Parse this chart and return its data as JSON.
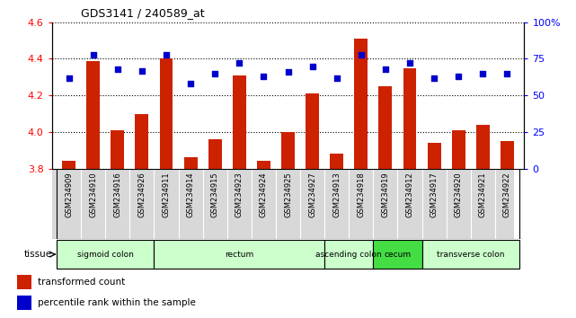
{
  "title": "GDS3141 / 240589_at",
  "samples": [
    "GSM234909",
    "GSM234910",
    "GSM234916",
    "GSM234926",
    "GSM234911",
    "GSM234914",
    "GSM234915",
    "GSM234923",
    "GSM234924",
    "GSM234925",
    "GSM234927",
    "GSM234913",
    "GSM234918",
    "GSM234919",
    "GSM234912",
    "GSM234917",
    "GSM234920",
    "GSM234921",
    "GSM234922"
  ],
  "transformed_count": [
    3.84,
    4.39,
    4.01,
    4.1,
    4.4,
    3.86,
    3.96,
    4.31,
    3.84,
    4.0,
    4.21,
    3.88,
    4.51,
    4.25,
    4.35,
    3.94,
    4.01,
    4.04,
    3.95
  ],
  "percentile_rank": [
    62,
    78,
    68,
    67,
    78,
    58,
    65,
    72,
    63,
    66,
    70,
    62,
    78,
    68,
    72,
    62,
    63,
    65,
    65
  ],
  "ylim_left": [
    3.8,
    4.6
  ],
  "ylim_right": [
    0,
    100
  ],
  "yticks_left": [
    3.8,
    4.0,
    4.2,
    4.4,
    4.6
  ],
  "yticks_right": [
    0,
    25,
    50,
    75,
    100
  ],
  "tissue_groups": [
    {
      "label": "sigmoid colon",
      "start": 0,
      "end": 4,
      "color": "#ccffcc"
    },
    {
      "label": "rectum",
      "start": 4,
      "end": 11,
      "color": "#ccffcc"
    },
    {
      "label": "ascending colon",
      "start": 11,
      "end": 13,
      "color": "#ccffcc"
    },
    {
      "label": "cecum",
      "start": 13,
      "end": 15,
      "color": "#44dd44"
    },
    {
      "label": "transverse colon",
      "start": 15,
      "end": 19,
      "color": "#ccffcc"
    }
  ],
  "bar_color": "#cc2200",
  "dot_color": "#0000cc",
  "xtick_bg": "#d8d8d8"
}
